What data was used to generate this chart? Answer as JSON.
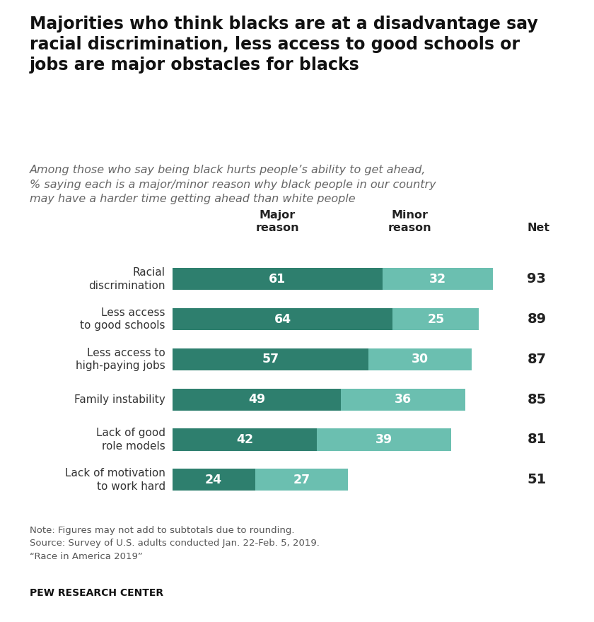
{
  "title": "Majorities who think blacks are at a disadvantage say\nracial discrimination, less access to good schools or\njobs are major obstacles for blacks",
  "subtitle": "Among those who say being black hurts people’s ability to get ahead,\n% saying each is a major/minor reason why black people in our country\nmay have a harder time getting ahead than white people",
  "categories": [
    "Racial\ndiscrimination",
    "Less access\nto good schools",
    "Less access to\nhigh-paying jobs",
    "Family instability",
    "Lack of good\nrole models",
    "Lack of motivation\nto work hard"
  ],
  "major_values": [
    61,
    64,
    57,
    49,
    42,
    24
  ],
  "minor_values": [
    32,
    25,
    30,
    36,
    39,
    27
  ],
  "net_values": [
    93,
    89,
    87,
    85,
    81,
    51
  ],
  "major_color": "#2E7F6E",
  "minor_color": "#6BBFB0",
  "major_label": "Major\nreason",
  "minor_label": "Minor\nreason",
  "net_label": "Net",
  "note_lines": [
    "Note: Figures may not add to subtotals due to rounding.",
    "Source: Survey of U.S. adults conducted Jan. 22-Feb. 5, 2019.",
    "“Race in America 2019”"
  ],
  "source_label": "PEW RESEARCH CENTER",
  "bar_height": 0.55,
  "background_color": "#ffffff"
}
